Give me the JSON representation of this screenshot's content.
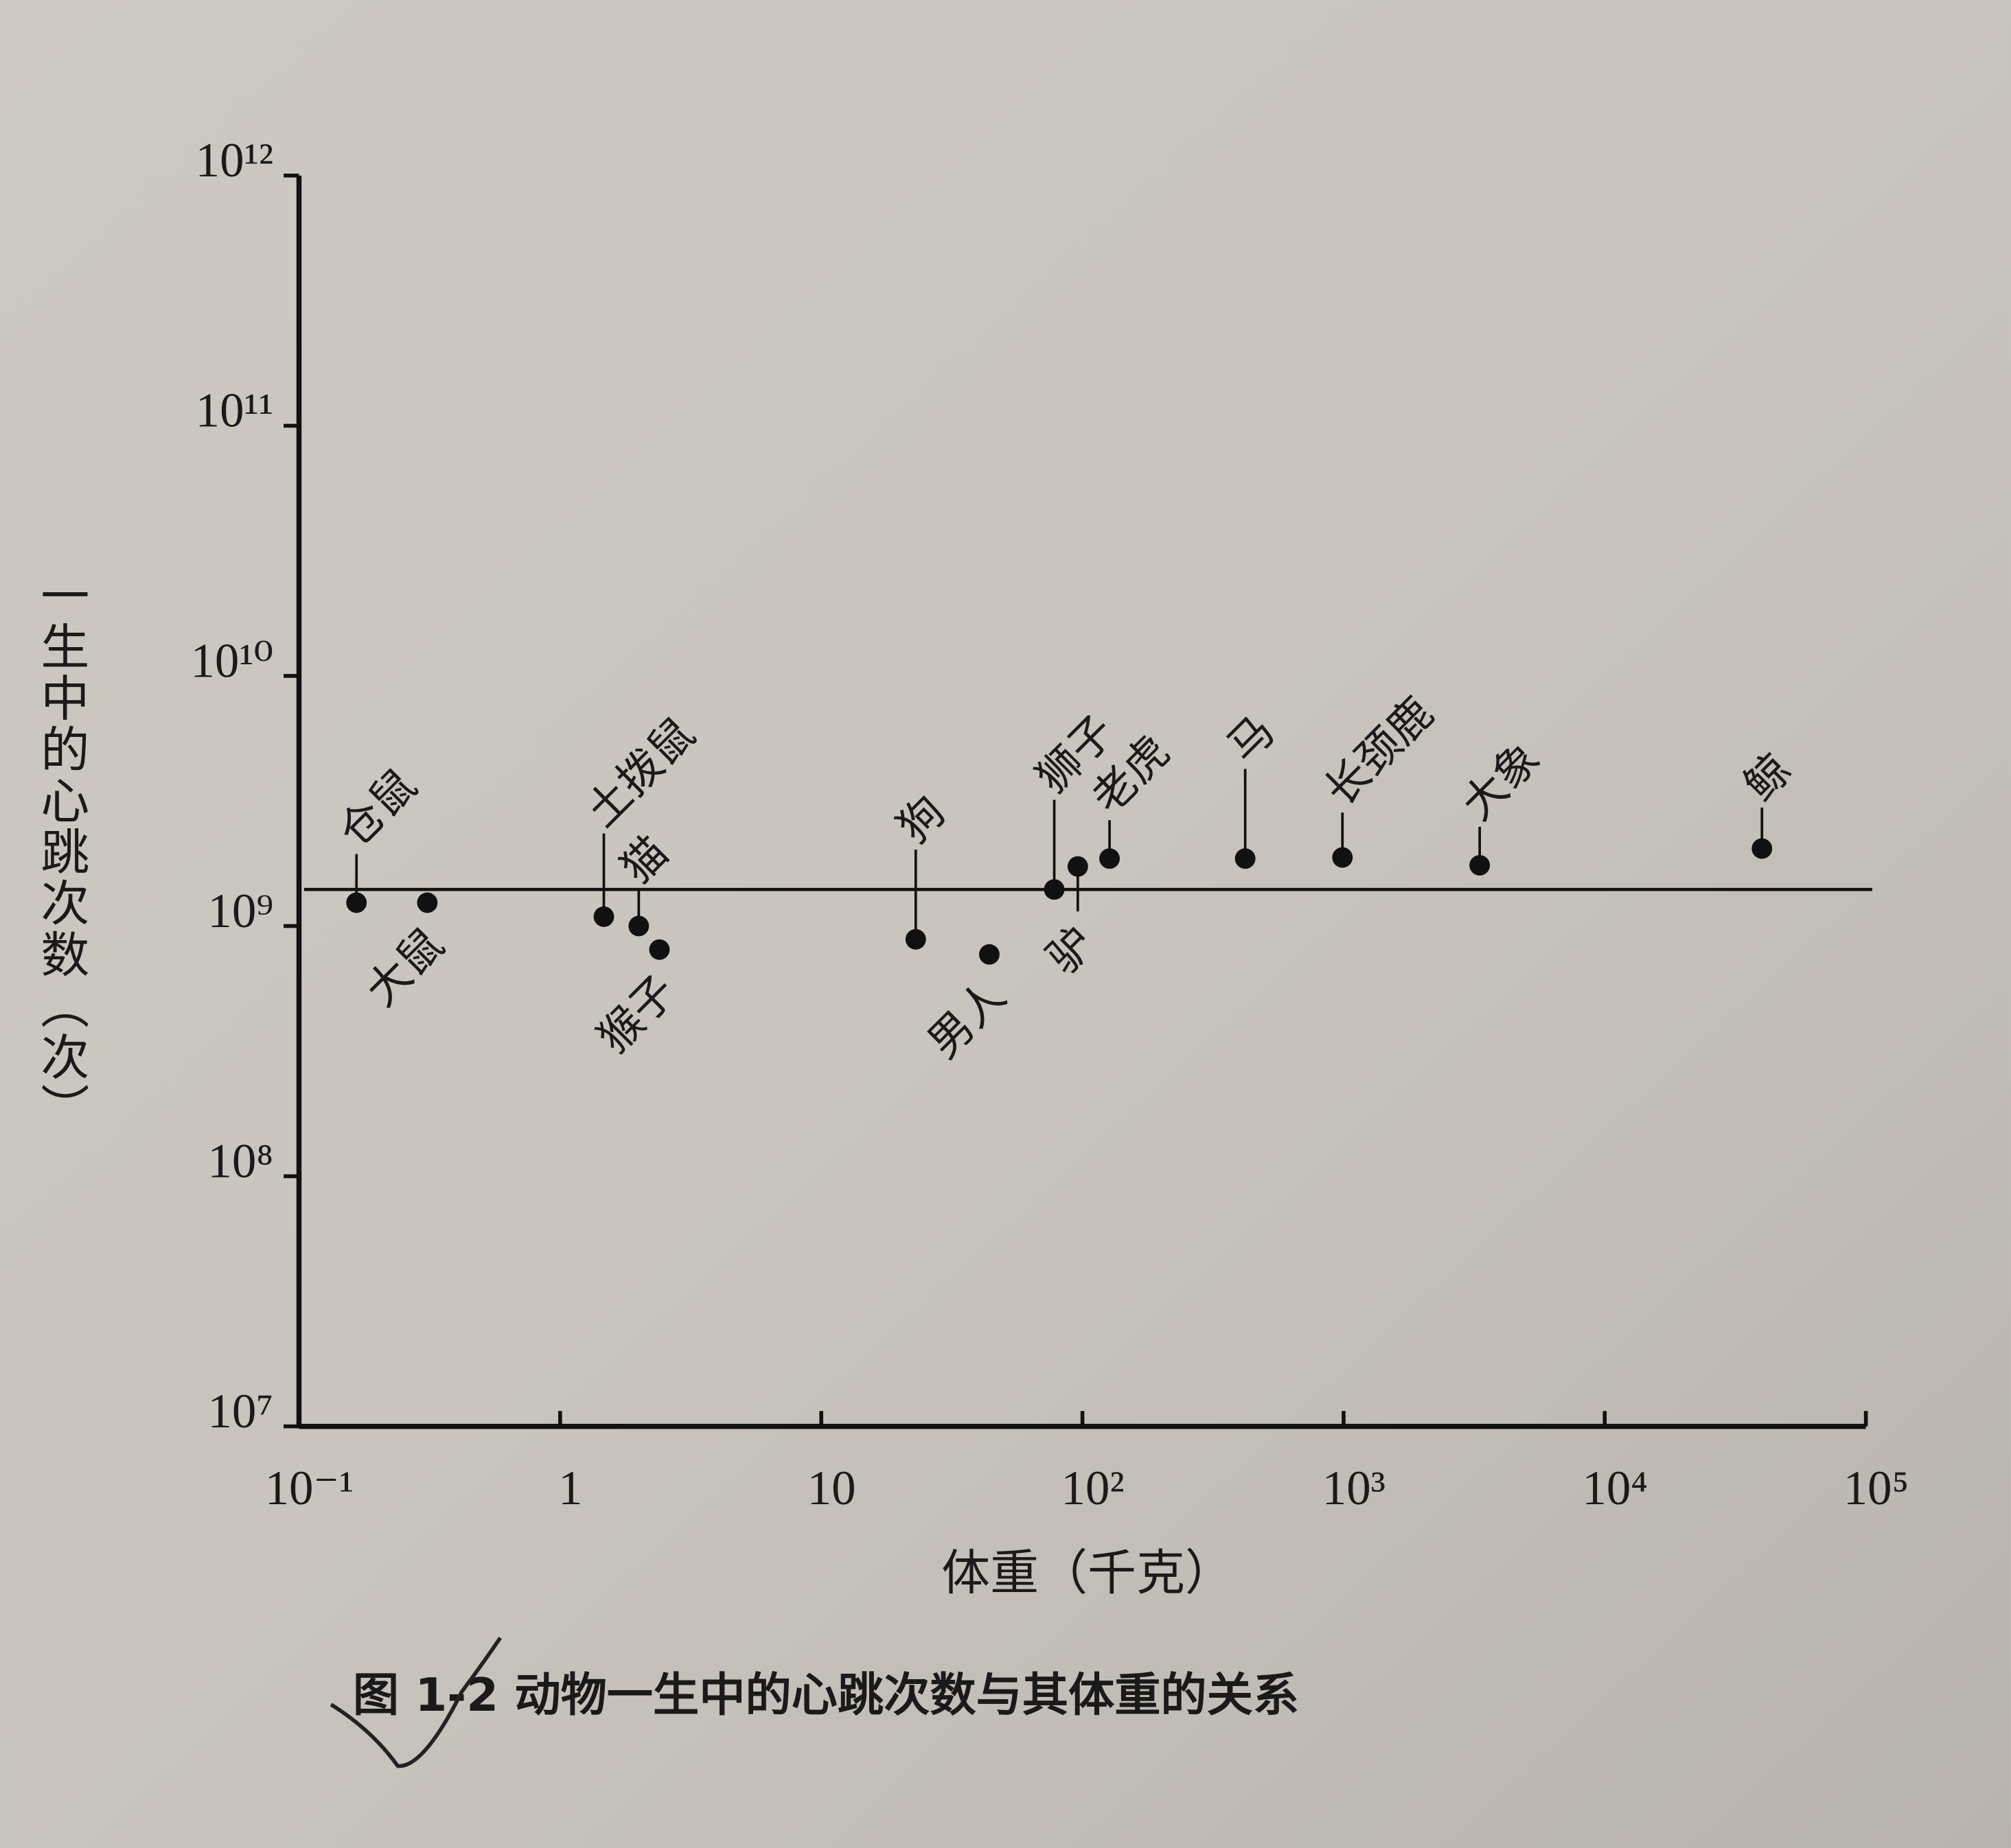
{
  "chart_data": {
    "type": "scatter",
    "title": "图 1-2  动物一生中的心跳次数与其体重的关系",
    "x_label": "体重（千克）",
    "y_label": "一生中的心跳次数（次）",
    "xscale": "log",
    "yscale": "log",
    "xlim": [
      0.1,
      100000
    ],
    "ylim": [
      10000000,
      1000000000000
    ],
    "xticks": [
      {
        "value": 0.1,
        "label": "10⁻¹"
      },
      1,
      10,
      {
        "value": 100,
        "label": "10²"
      },
      {
        "value": 1000,
        "label": "10³"
      },
      {
        "value": 10000,
        "label": "10⁴"
      },
      {
        "value": 100000,
        "label": "10⁵"
      }
    ],
    "yticks": [
      {
        "value": 10000000,
        "label": "10⁷"
      },
      {
        "value": 100000000,
        "label": "10⁸"
      },
      {
        "value": 1000000000,
        "label": "10⁹"
      },
      {
        "value": 10000000000,
        "label": "10¹⁰"
      },
      {
        "value": 100000000000,
        "label": "10¹¹"
      },
      {
        "value": 1000000000000,
        "label": "10¹²"
      }
    ],
    "labels": [
      "仓鼠",
      "大鼠",
      "土拨鼠",
      "猫",
      "猴子",
      "狗",
      "男人",
      "狮子",
      "驴",
      "老虎",
      "马",
      "长颈鹿",
      "大象",
      "鲸"
    ],
    "x": [
      0.166,
      0.31,
      1.47,
      2.0,
      2.4,
      23,
      44,
      78,
      96,
      127,
      420,
      990,
      3320,
      40000
    ],
    "values": [
      1240000000,
      1240000000,
      1090000000,
      1000000000,
      805000000,
      885000000,
      770000000,
      1400000000,
      1730000000,
      1860000000,
      1860000000,
      1880000000,
      1750000000,
      2040000000
    ],
    "reference_line": 1400000000,
    "color": "#111111"
  }
}
